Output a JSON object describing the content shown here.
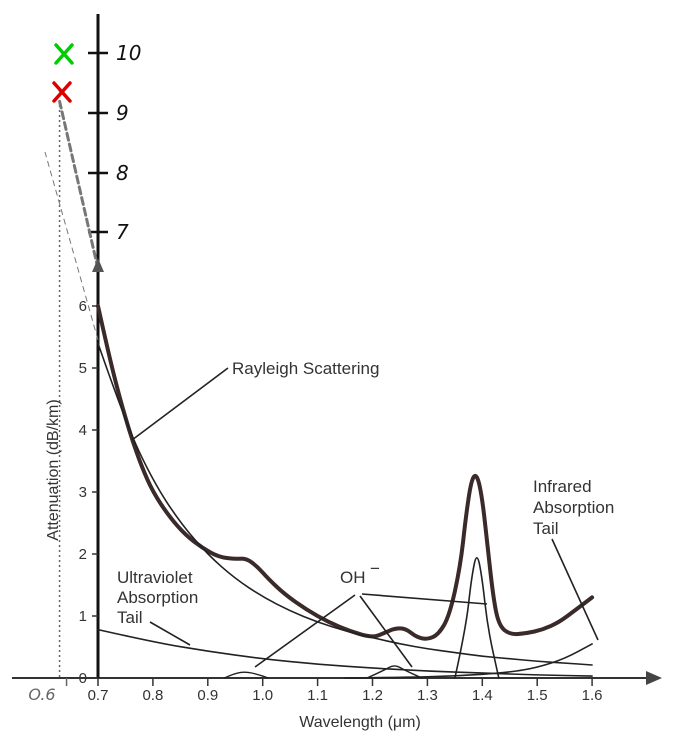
{
  "chart_data": {
    "type": "line",
    "title": "",
    "xlabel": "Wavelength (μm)",
    "ylabel": "Attenuation (dB/km)",
    "xlim": [
      0.6,
      1.6
    ],
    "ylim": [
      0,
      10
    ],
    "x_ticks": [
      "0.7",
      "0.8",
      "0.9",
      "1.0",
      "1.1",
      "1.2",
      "1.3",
      "1.4",
      "1.5",
      "1.6"
    ],
    "y_ticks": [
      "0",
      "1",
      "2",
      "3",
      "4",
      "5",
      "6"
    ],
    "y_ticks_hand": [
      "7",
      "8",
      "9",
      "10"
    ],
    "x_tick_hand": "O.6",
    "annotations": {
      "rayleigh": "Rayleigh Scattering",
      "uv": [
        "Ultraviolet",
        "Absorption",
        "Tail"
      ],
      "oh": "OH",
      "oh_sup": "−",
      "ir": [
        "Infrared",
        "Absorption",
        "Tail"
      ]
    },
    "series": [
      {
        "role": "total",
        "x": [
          0.7,
          0.72,
          0.74,
          0.76,
          0.78,
          0.8,
          0.83,
          0.86,
          0.89,
          0.92,
          0.95,
          0.97,
          0.99,
          1.01,
          1.04,
          1.08,
          1.12,
          1.16,
          1.2,
          1.22,
          1.24,
          1.26,
          1.28,
          1.3,
          1.32,
          1.34,
          1.36,
          1.37,
          1.38,
          1.39,
          1.4,
          1.41,
          1.42,
          1.43,
          1.45,
          1.48,
          1.51,
          1.54,
          1.57,
          1.6
        ],
        "y": [
          6.0,
          5.2,
          4.5,
          3.9,
          3.4,
          3.0,
          2.6,
          2.3,
          2.1,
          1.95,
          1.92,
          1.93,
          1.8,
          1.6,
          1.35,
          1.1,
          0.9,
          0.75,
          0.65,
          0.72,
          0.8,
          0.8,
          0.66,
          0.62,
          0.7,
          1.0,
          1.8,
          2.6,
          3.2,
          3.3,
          2.9,
          2.1,
          1.3,
          0.85,
          0.7,
          0.72,
          0.78,
          0.9,
          1.1,
          1.3
        ]
      },
      {
        "role": "rayleigh",
        "x": [
          0.7,
          0.75,
          0.8,
          0.85,
          0.9,
          0.95,
          1.0,
          1.05,
          1.1,
          1.15,
          1.2,
          1.25,
          1.3,
          1.35,
          1.4,
          1.45,
          1.5,
          1.55,
          1.6
        ],
        "y": [
          5.4,
          4.12,
          3.18,
          2.5,
          1.99,
          1.6,
          1.31,
          1.08,
          0.9,
          0.76,
          0.65,
          0.55,
          0.47,
          0.41,
          0.35,
          0.31,
          0.27,
          0.24,
          0.21
        ]
      },
      {
        "role": "uv",
        "x": [
          0.7,
          0.8,
          0.9,
          1.0,
          1.1,
          1.2,
          1.3,
          1.4,
          1.5,
          1.6
        ],
        "y": [
          0.78,
          0.58,
          0.43,
          0.31,
          0.22,
          0.16,
          0.11,
          0.08,
          0.05,
          0.03
        ]
      },
      {
        "role": "ir",
        "x": [
          1.15,
          1.25,
          1.35,
          1.45,
          1.5,
          1.55,
          1.6
        ],
        "y": [
          0.0,
          0.01,
          0.03,
          0.09,
          0.17,
          0.31,
          0.55
        ]
      },
      {
        "role": "oh-0.95",
        "x": [
          0.93,
          0.95,
          0.97,
          0.99,
          1.01
        ],
        "y": [
          0.0,
          0.08,
          0.1,
          0.06,
          0.0
        ]
      },
      {
        "role": "oh-1.24",
        "x": [
          1.19,
          1.22,
          1.24,
          1.26,
          1.29
        ],
        "y": [
          0.0,
          0.12,
          0.22,
          0.12,
          0.0
        ]
      },
      {
        "role": "oh-1.39",
        "x": [
          1.35,
          1.37,
          1.38,
          1.39,
          1.4,
          1.41,
          1.43
        ],
        "y": [
          0.0,
          0.8,
          1.6,
          2.05,
          1.6,
          0.8,
          0.0
        ]
      },
      {
        "role": "extrapolation",
        "x": [
          0.7,
          0.63
        ],
        "y": [
          6.6,
          9.3
        ]
      }
    ],
    "markers": [
      {
        "color": "#00cc00",
        "x": 0.63,
        "y": 10.0
      },
      {
        "color": "#dd0000",
        "x": 0.63,
        "y": 9.3
      }
    ]
  }
}
